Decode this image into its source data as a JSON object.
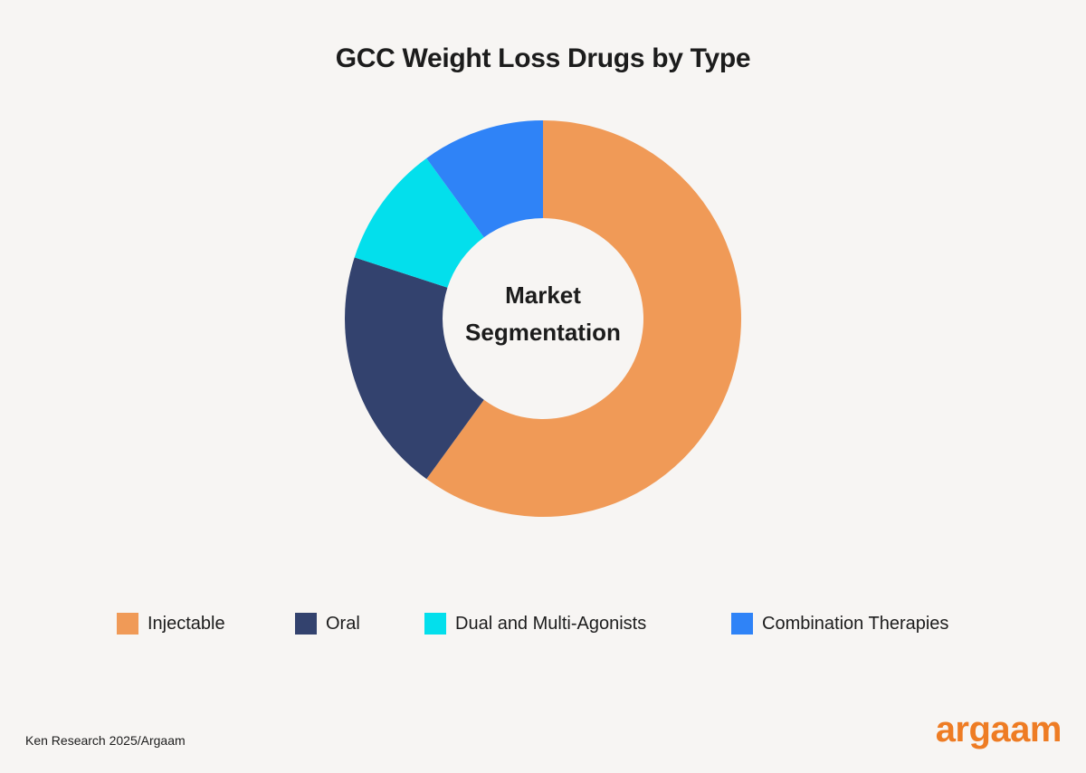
{
  "page": {
    "background": "#f7f5f3",
    "source": "Ken Research 2025/Argaam",
    "brand": "argaam",
    "brand_color": "#ee7c24"
  },
  "chart_data": {
    "type": "pie",
    "variant": "donut",
    "title": "GCC Weight Loss Drugs by Type",
    "center_label": [
      "Market",
      "Segmentation"
    ],
    "series": [
      {
        "name": "Injectable",
        "value": 60,
        "color": "#f09a57"
      },
      {
        "name": "Oral",
        "value": 20,
        "color": "#33426e"
      },
      {
        "name": "Dual and Multi-Agonists",
        "value": 10,
        "color": "#03dfec"
      },
      {
        "name": "Combination Therapies",
        "value": 10,
        "color": "#2f83f7"
      }
    ],
    "legend_position": "bottom"
  }
}
